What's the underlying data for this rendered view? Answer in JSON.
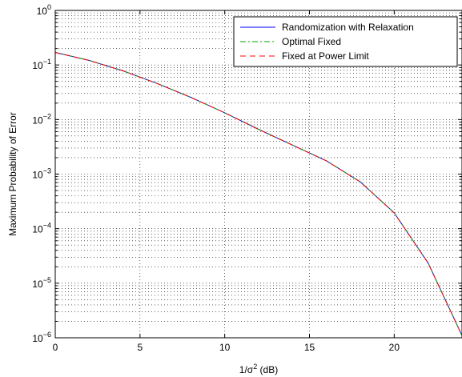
{
  "chart_data": {
    "type": "line",
    "xlabel": "1/σ",
    "xlabel_sup": "2",
    "xlabel_suffix": " (dB)",
    "ylabel": "Maximum Probability of Error",
    "xlim": [
      0,
      24
    ],
    "ylim": [
      1e-06,
      1
    ],
    "yscale": "log",
    "grid": true,
    "legend_position": "top-right",
    "x_ticks": [
      0,
      5,
      10,
      15,
      20
    ],
    "y_ticks": [
      {
        "value": 1e-06,
        "base": "10",
        "exp": "−6"
      },
      {
        "value": 1e-05,
        "base": "10",
        "exp": "−5"
      },
      {
        "value": 0.0001,
        "base": "10",
        "exp": "−4"
      },
      {
        "value": 0.001,
        "base": "10",
        "exp": "−3"
      },
      {
        "value": 0.01,
        "base": "10",
        "exp": "−2"
      },
      {
        "value": 0.1,
        "base": "10",
        "exp": "−1"
      },
      {
        "value": 1,
        "base": "10",
        "exp": "0"
      }
    ],
    "x": [
      0,
      2,
      4,
      6,
      8,
      10,
      12,
      14,
      16,
      18,
      20,
      22,
      24
    ],
    "series": [
      {
        "name": "Randomization with Relaxation",
        "color": "#0000ff",
        "dash": "solid",
        "values": [
          0.17,
          0.121,
          0.078,
          0.046,
          0.0255,
          0.0133,
          0.0066,
          0.0034,
          0.00175,
          0.00072,
          0.000195,
          2.35e-05,
          1.1e-06
        ]
      },
      {
        "name": "Optimal Fixed",
        "color": "#00a000",
        "dash": "dashdot",
        "values": [
          0.17,
          0.121,
          0.078,
          0.046,
          0.0255,
          0.0133,
          0.0066,
          0.0034,
          0.00175,
          0.00072,
          0.000195,
          2.35e-05,
          1.1e-06
        ]
      },
      {
        "name": "Fixed at Power Limit",
        "color": "#ff0000",
        "dash": "dashed",
        "values": [
          0.17,
          0.121,
          0.078,
          0.046,
          0.0255,
          0.0133,
          0.0066,
          0.0034,
          0.00175,
          0.00072,
          0.000195,
          2.35e-05,
          1.1e-06
        ]
      }
    ]
  }
}
